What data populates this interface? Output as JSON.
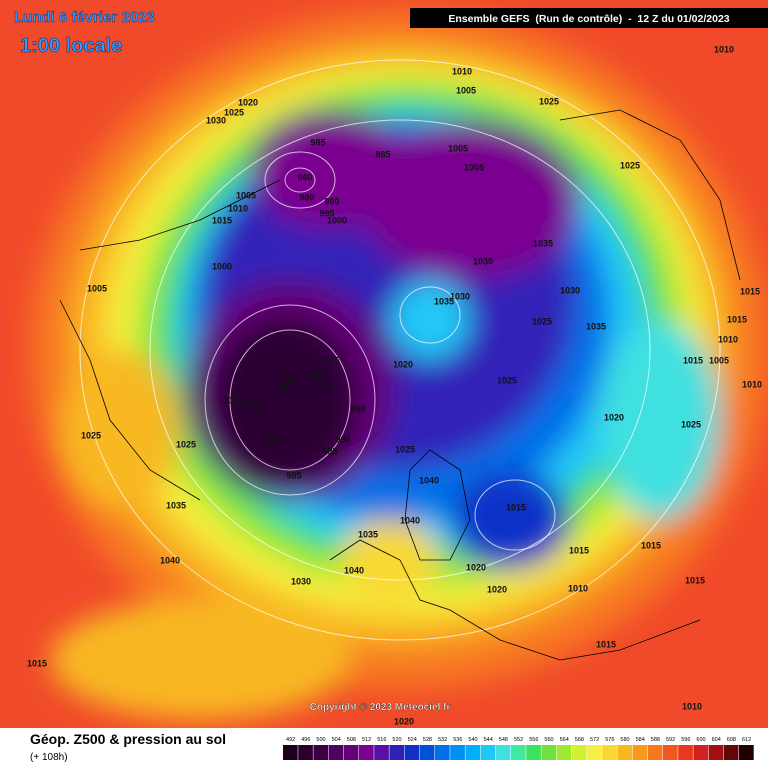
{
  "header": {
    "date": "Lundi 6 février 2023",
    "time": "1:00 locale",
    "run": "Ensemble GEFS  (Run de contrôle)  -  12 Z du 01/02/2023"
  },
  "footer": {
    "title": "Géop. Z500 & pression au sol",
    "subtitle": "(+ 108h)",
    "copyright": "Copyright © 2023 Meteociel.fr"
  },
  "colorbar": {
    "labels": [
      492,
      496,
      500,
      504,
      508,
      512,
      516,
      520,
      524,
      528,
      532,
      536,
      540,
      544,
      548,
      552,
      556,
      560,
      564,
      568,
      572,
      576,
      580,
      584,
      588,
      592,
      596,
      600,
      604,
      608,
      612
    ],
    "colors": [
      "#1a001a",
      "#2b0030",
      "#3d0046",
      "#50005e",
      "#650078",
      "#7a0090",
      "#5a10a8",
      "#3020b8",
      "#1030c8",
      "#0050d8",
      "#0070e8",
      "#0090f0",
      "#00b0f8",
      "#20c8f8",
      "#40e0e0",
      "#40e8a0",
      "#40e060",
      "#70e040",
      "#a0e830",
      "#d0f030",
      "#f8f040",
      "#f8d830",
      "#f8b820",
      "#f89820",
      "#f87820",
      "#f05820",
      "#e83820",
      "#d02020",
      "#a01010",
      "#600808",
      "#200000"
    ]
  },
  "isobars": [
    "1010",
    "1010",
    "1005",
    "1025",
    "1020",
    "1025",
    "1030",
    "985",
    "985",
    "1005",
    "1005",
    "1025",
    "960",
    "980",
    "990",
    "995",
    "1000",
    "1005",
    "1010",
    "1015",
    "1035",
    "1000",
    "1030",
    "1005",
    "1035",
    "1030",
    "1030",
    "1025",
    "1035",
    "1015",
    "1015",
    "1010",
    "1015",
    "1005",
    "1010",
    "975",
    "965",
    "970",
    "980",
    "985",
    "1010",
    "1005",
    "990",
    "1020",
    "1025",
    "1020",
    "1025",
    "980",
    "990",
    "985",
    "1025",
    "1025",
    "1025",
    "985",
    "1040",
    "1035",
    "1015",
    "1040",
    "1035",
    "1040",
    "1040",
    "1015",
    "1015",
    "1020",
    "1030",
    "1020",
    "1010",
    "1015",
    "1015",
    "1015",
    "1020",
    "1010"
  ]
}
